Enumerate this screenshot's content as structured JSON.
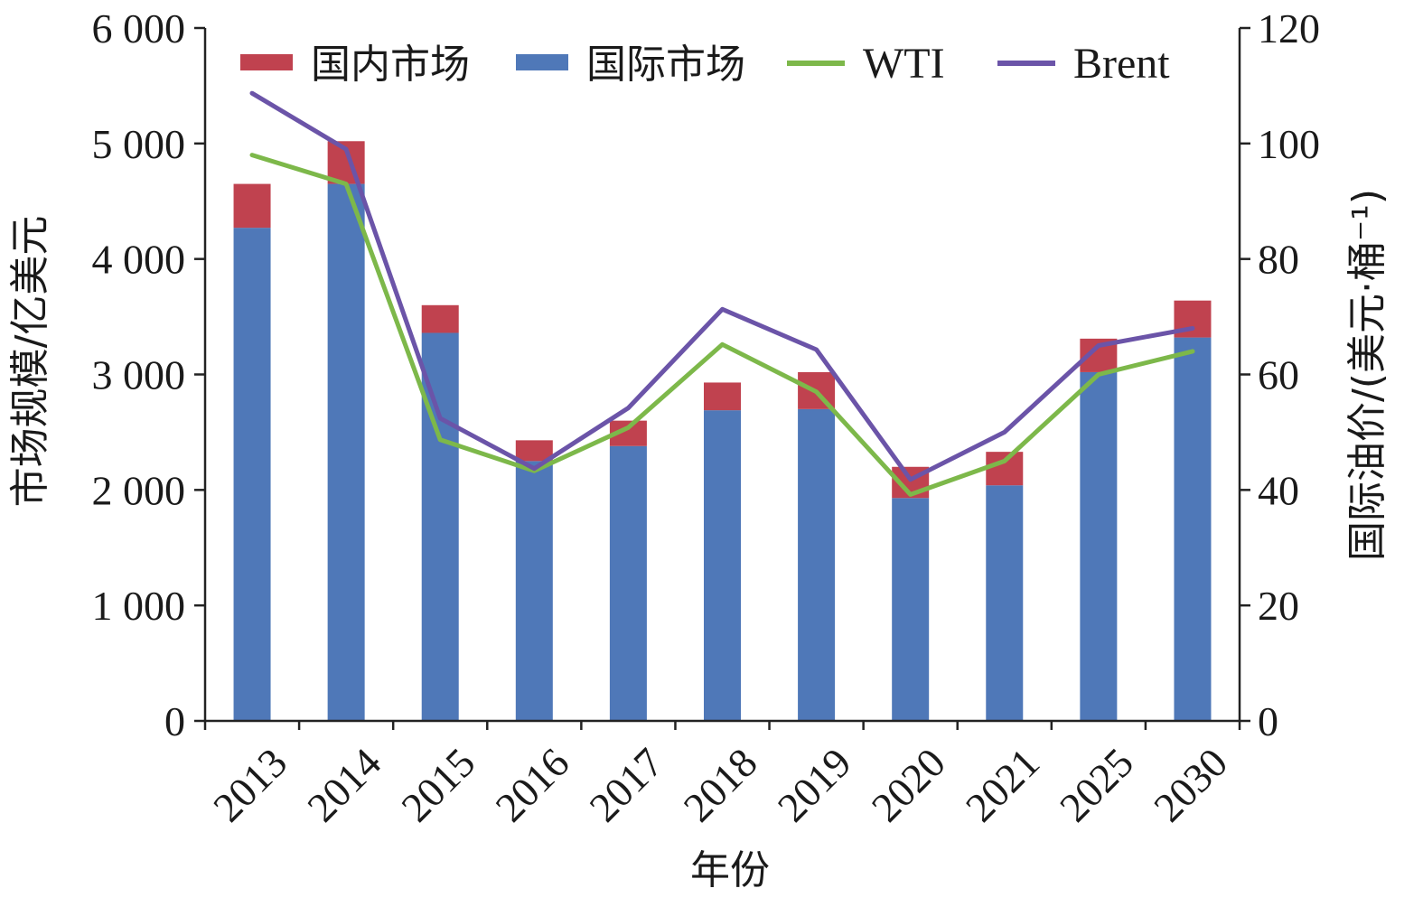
{
  "chart_data": {
    "type": "bar",
    "stacked": true,
    "categories": [
      "2013",
      "2014",
      "2015",
      "2016",
      "2017",
      "2018",
      "2019",
      "2020",
      "2021",
      "2025",
      "2030"
    ],
    "series": [
      {
        "name": "国际市场",
        "axis": "left",
        "type": "bar",
        "color": "#4f78b8",
        "values": [
          4270,
          4650,
          3360,
          2250,
          2380,
          2690,
          2700,
          1930,
          2040,
          3020,
          3320
        ]
      },
      {
        "name": "国内市场",
        "axis": "left",
        "type": "bar",
        "color": "#c0424f",
        "values": [
          380,
          370,
          240,
          180,
          220,
          240,
          320,
          270,
          290,
          290,
          320
        ]
      },
      {
        "name": "WTI",
        "axis": "right",
        "type": "line",
        "color": "#7db84a",
        "values": [
          98,
          93,
          48.7,
          43.3,
          50.8,
          65.2,
          57,
          39.2,
          45,
          60,
          64
        ]
      },
      {
        "name": "Brent",
        "axis": "right",
        "type": "line",
        "color": "#6b54a8",
        "values": [
          108.7,
          99,
          52.4,
          43.7,
          54.2,
          71.3,
          64.3,
          41.8,
          50,
          65,
          68
        ]
      }
    ],
    "left_axis": {
      "label": "市场规模/亿美元",
      "ylim": [
        0,
        6000
      ],
      "ticks": [
        0,
        1000,
        2000,
        3000,
        4000,
        5000,
        6000
      ],
      "tick_labels": [
        "0",
        "1 000",
        "2 000",
        "3 000",
        "4 000",
        "5 000",
        "6 000"
      ]
    },
    "right_axis": {
      "label": "国际油价/(美元·桶⁻¹)",
      "ylim": [
        0,
        120
      ],
      "ticks": [
        0,
        20,
        40,
        60,
        80,
        100,
        120
      ],
      "tick_labels": [
        "0",
        "20",
        "40",
        "60",
        "80",
        "100",
        "120"
      ]
    },
    "xlabel": "年份",
    "legend_position": "top",
    "legend_order": [
      "国内市场",
      "国际市场",
      "WTI",
      "Brent"
    ],
    "grid": false
  }
}
